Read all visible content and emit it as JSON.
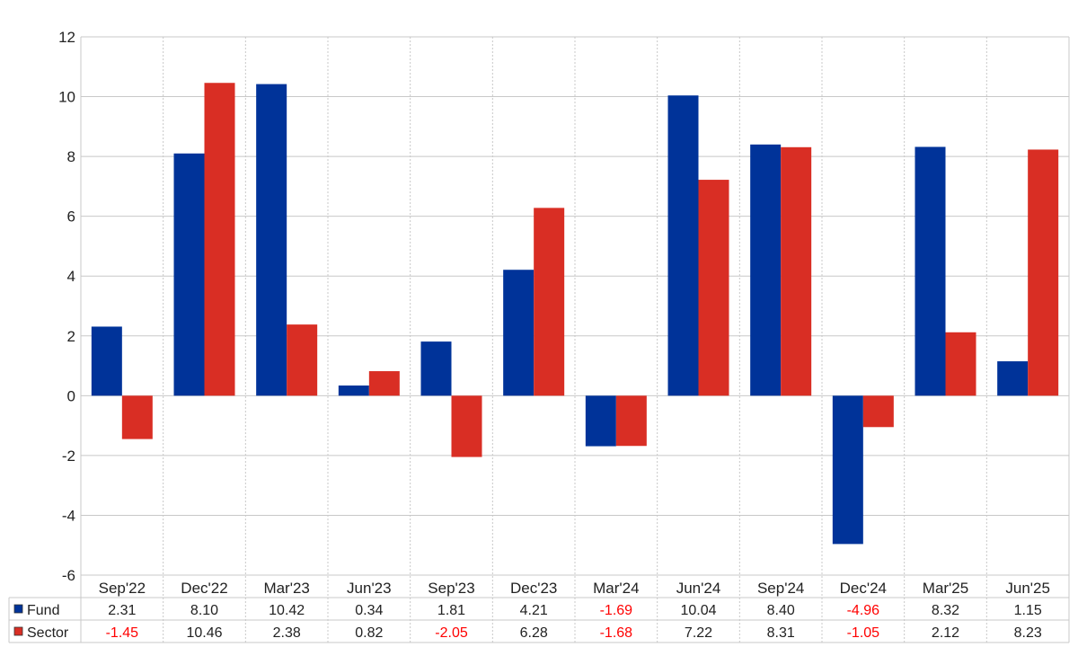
{
  "colors": {
    "fund": "#003399",
    "sector": "#d92e24",
    "negative": "#ff0000",
    "grid": "#c8c8c8"
  },
  "chart_data": {
    "type": "bar",
    "title": "",
    "xlabel": "",
    "ylabel": "",
    "ylim": [
      -6,
      12
    ],
    "yticks": [
      12,
      10,
      8,
      6,
      4,
      2,
      0,
      -2,
      -4,
      -6
    ],
    "grid": true,
    "legend": "table-rows",
    "categories": [
      "Sep'22",
      "Dec'22",
      "Mar'23",
      "Jun'23",
      "Sep'23",
      "Dec'23",
      "Mar'24",
      "Jun'24",
      "Sep'24",
      "Dec'24",
      "Mar'25",
      "Jun'25"
    ],
    "series": [
      {
        "name": "Fund",
        "values": [
          2.31,
          8.1,
          10.42,
          0.34,
          1.81,
          4.21,
          -1.69,
          10.04,
          8.4,
          -4.96,
          8.32,
          1.15
        ]
      },
      {
        "name": "Sector",
        "values": [
          -1.45,
          10.46,
          2.38,
          0.82,
          -2.05,
          6.28,
          -1.68,
          7.22,
          8.31,
          -1.05,
          2.12,
          8.23
        ]
      }
    ]
  }
}
